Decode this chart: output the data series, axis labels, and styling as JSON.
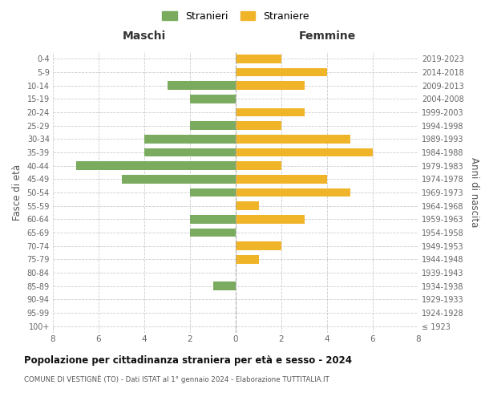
{
  "age_groups": [
    "100+",
    "95-99",
    "90-94",
    "85-89",
    "80-84",
    "75-79",
    "70-74",
    "65-69",
    "60-64",
    "55-59",
    "50-54",
    "45-49",
    "40-44",
    "35-39",
    "30-34",
    "25-29",
    "20-24",
    "15-19",
    "10-14",
    "5-9",
    "0-4"
  ],
  "birth_years": [
    "≤ 1923",
    "1924-1928",
    "1929-1933",
    "1934-1938",
    "1939-1943",
    "1944-1948",
    "1949-1953",
    "1954-1958",
    "1959-1963",
    "1964-1968",
    "1969-1973",
    "1974-1978",
    "1979-1983",
    "1984-1988",
    "1989-1993",
    "1994-1998",
    "1999-2003",
    "2004-2008",
    "2009-2013",
    "2014-2018",
    "2019-2023"
  ],
  "males": [
    0,
    0,
    0,
    1,
    0,
    0,
    0,
    2,
    2,
    0,
    2,
    5,
    7,
    4,
    4,
    2,
    0,
    2,
    3,
    0,
    0
  ],
  "females": [
    0,
    0,
    0,
    0,
    0,
    1,
    2,
    0,
    3,
    1,
    5,
    4,
    2,
    6,
    5,
    2,
    3,
    0,
    3,
    4,
    2
  ],
  "male_color": "#7aab5e",
  "female_color": "#f0b429",
  "title": "Popolazione per cittadinanza straniera per età e sesso - 2024",
  "subtitle": "COMUNE DI VESTIGNÈ (TO) - Dati ISTAT al 1° gennaio 2024 - Elaborazione TUTTITALIA.IT",
  "xlabel_left": "Maschi",
  "xlabel_right": "Femmine",
  "ylabel_left": "Fasce di età",
  "ylabel_right": "Anni di nascita",
  "legend_male": "Stranieri",
  "legend_female": "Straniere",
  "xlim": 8,
  "background_color": "#ffffff",
  "grid_color": "#cccccc"
}
